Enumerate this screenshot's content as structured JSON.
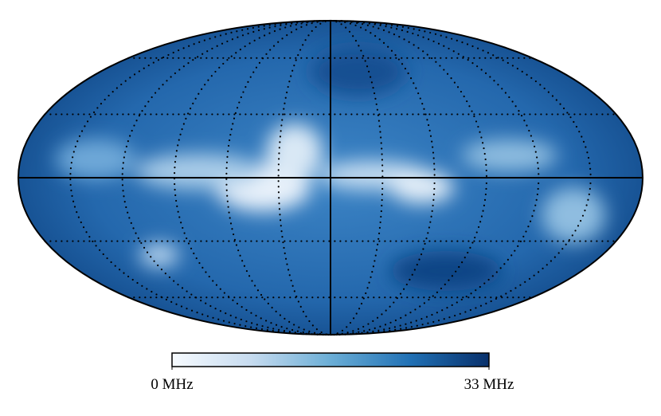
{
  "chart_data": {
    "type": "mollweide",
    "colormap": [
      "#f7fbff",
      "#c6dbef",
      "#6baed6",
      "#2171b5",
      "#08306b"
    ],
    "colorbar_lim": [
      0,
      33
    ],
    "colorbar_ticks": [
      {
        "value": 0,
        "label": "0 MHz"
      },
      {
        "value": 33,
        "label": "33 MHz"
      }
    ],
    "grid": true
  }
}
